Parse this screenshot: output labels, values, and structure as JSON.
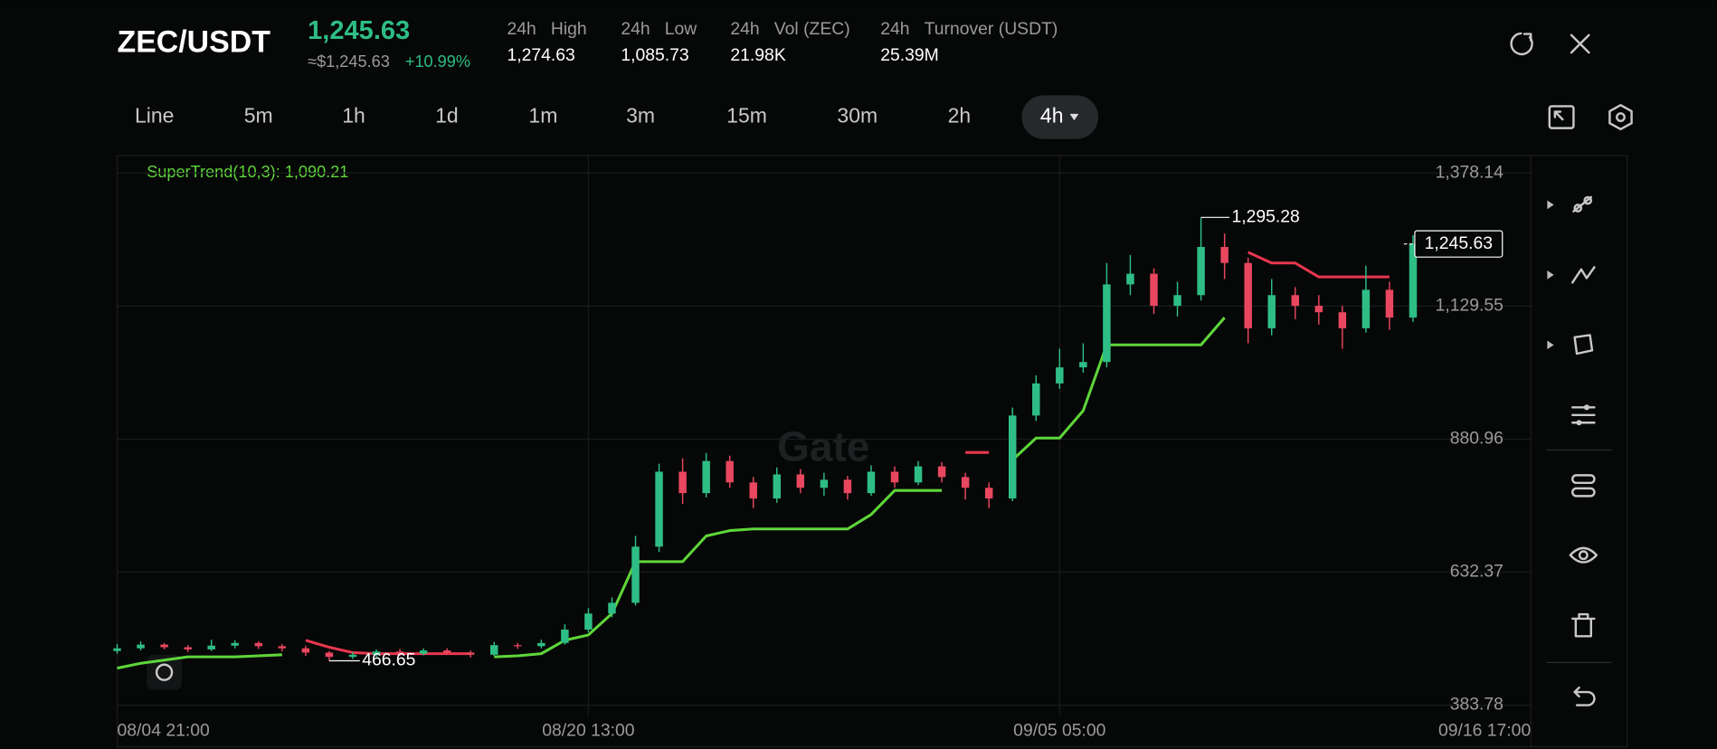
{
  "header": {
    "pair": "ZEC/USDT",
    "price": "1,245.63",
    "fiat_price": "≈$1,245.63",
    "change": "+10.99%",
    "stats": [
      {
        "period": "24h",
        "name": "High",
        "value": "1,274.63"
      },
      {
        "period": "24h",
        "name": "Low",
        "value": "1,085.73"
      },
      {
        "period": "24h",
        "name": "Vol (ZEC)",
        "value": "21.98K"
      },
      {
        "period": "24h",
        "name": "Turnover (USDT)",
        "value": "25.39M"
      }
    ]
  },
  "timeframes": [
    "Line",
    "5m",
    "1h",
    "1d",
    "1m",
    "3m",
    "15m",
    "30m",
    "2h"
  ],
  "active_timeframe": "4h",
  "watermark": "Gate",
  "chart_data": {
    "type": "candlestick",
    "categories": [
      "08/04 21:00",
      null,
      null,
      null,
      null,
      null,
      null,
      null,
      null,
      null,
      null,
      null,
      null,
      null,
      null,
      null,
      null,
      null,
      null,
      null,
      "08/20 13:00",
      null,
      null,
      null,
      null,
      null,
      null,
      null,
      null,
      null,
      null,
      null,
      null,
      null,
      null,
      null,
      null,
      null,
      null,
      null,
      "09/05 05:00",
      null,
      null,
      null,
      null,
      null,
      null,
      null,
      null,
      null,
      null,
      null,
      null,
      null,
      null,
      null,
      null,
      null,
      null,
      null,
      "09/16 17:00"
    ],
    "open": [
      485,
      490,
      497,
      492,
      488,
      495,
      500,
      494,
      490,
      482,
      474,
      478,
      484,
      480,
      486,
      482,
      478,
      496,
      494,
      500,
      525,
      555,
      575,
      680,
      820,
      780,
      840,
      800,
      770,
      815,
      790,
      805,
      780,
      820,
      800,
      830,
      810,
      790,
      770,
      925,
      985,
      1015,
      1025,
      1170,
      1190,
      1130,
      1150,
      1240,
      1210,
      1088,
      1150,
      1130,
      1118,
      1088,
      1160,
      1108,
      null,
      null,
      null,
      null,
      null
    ],
    "high": [
      498,
      503,
      500,
      496,
      506,
      505,
      503,
      498,
      495,
      485,
      483,
      488,
      489,
      490,
      490,
      486,
      502,
      500,
      506,
      535,
      565,
      585,
      700,
      835,
      845,
      855,
      850,
      810,
      828,
      825,
      818,
      812,
      832,
      830,
      840,
      838,
      818,
      800,
      940,
      1000,
      1050,
      1060,
      1210,
      1225,
      1200,
      1175,
      1295.28,
      1265,
      1220,
      1180,
      1165,
      1150,
      1130,
      1205,
      1175,
      1262,
      null,
      null,
      null,
      null,
      null
    ],
    "low": [
      480,
      486,
      488,
      483,
      485,
      490,
      489,
      484,
      476,
      466.65,
      470,
      474,
      476,
      477,
      478,
      473,
      476,
      489,
      490,
      497,
      520,
      548,
      570,
      670,
      760,
      772,
      790,
      752,
      762,
      780,
      775,
      768,
      775,
      790,
      795,
      800,
      768,
      752,
      765,
      915,
      975,
      1005,
      1015,
      1150,
      1115,
      1110,
      1140,
      1180,
      1060,
      1075,
      1105,
      1095,
      1050,
      1080,
      1085,
      1100,
      null,
      null,
      null,
      null,
      null
    ],
    "close": [
      490,
      497,
      492,
      488,
      495,
      500,
      494,
      490,
      482,
      474,
      478,
      484,
      480,
      486,
      482,
      478,
      496,
      494,
      500,
      525,
      555,
      575,
      680,
      820,
      780,
      840,
      800,
      770,
      815,
      790,
      805,
      780,
      820,
      800,
      830,
      810,
      790,
      770,
      925,
      985,
      1015,
      1025,
      1170,
      1190,
      1130,
      1150,
      1240,
      1210,
      1088,
      1150,
      1130,
      1118,
      1088,
      1160,
      1108,
      1245.63,
      null,
      null,
      null,
      null,
      null
    ],
    "up_color": "#2ebd85",
    "down_color": "#e8475f",
    "ylim": [
      363.3,
      1410.9
    ],
    "yticks": [
      {
        "value": 1378.14,
        "label": "1,378.14"
      },
      {
        "value": 1129.55,
        "label": "1,129.55"
      },
      880.96,
      632.37,
      383.78
    ],
    "grid": true,
    "indicator": {
      "label": "SuperTrend(10,3): 1,090.21",
      "up_color": "#5ed63a",
      "down_color": "#e8374f",
      "up_values": [
        453,
        462,
        468,
        474,
        474,
        474,
        476,
        478,
        null,
        null,
        null,
        null,
        null,
        null,
        null,
        null,
        474,
        476,
        480,
        505,
        515,
        555,
        652,
        652,
        652,
        700,
        710,
        713,
        713,
        713,
        713,
        713,
        740,
        785,
        785,
        785,
        null,
        null,
        842,
        883,
        883,
        934,
        1057,
        1057,
        1057,
        1057,
        1057,
        1108,
        null,
        null,
        null,
        null,
        null,
        null,
        null,
        1090.21,
        null,
        null,
        null,
        null,
        null
      ],
      "down_values": [
        null,
        null,
        null,
        null,
        null,
        null,
        null,
        null,
        505,
        492,
        482,
        480,
        480,
        480,
        480,
        480,
        null,
        null,
        null,
        null,
        null,
        null,
        null,
        null,
        null,
        null,
        null,
        null,
        null,
        null,
        null,
        null,
        null,
        null,
        null,
        null,
        856,
        856,
        null,
        null,
        null,
        null,
        null,
        null,
        null,
        null,
        null,
        null,
        1230,
        1210,
        1210,
        1184,
        1184,
        1184,
        1184,
        null,
        null,
        null,
        null,
        null,
        null
      ]
    },
    "last_price": {
      "value": 1245.63,
      "label": "1,245.63"
    },
    "high_annotation": {
      "index": 46,
      "value": 1295.28,
      "label": "1,295.28"
    },
    "low_annotation": {
      "index": 9,
      "value": 466.65
    }
  }
}
